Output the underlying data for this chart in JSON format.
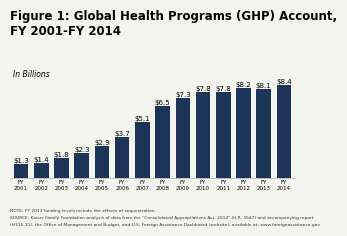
{
  "title": "Figure 1: Global Health Programs (GHP) Account,\nFY 2001-FY 2014",
  "subtitle": "In Billions",
  "categories": [
    "FY 2001",
    "FY 2002",
    "FY 2003",
    "FY 2004",
    "FY 2005",
    "FY 2006",
    "FY 2007",
    "FY 2008",
    "FY 2009",
    "FY 2010",
    "FY 2011",
    "FY 2012",
    "FY 2013",
    "FY 2014"
  ],
  "xtick_labels": [
    "FY 2001",
    "FY 2002",
    "FY 2003",
    "FY 2004",
    "FY 2005",
    "FY 2006",
    "FY 2007",
    "FY 2008",
    "FY 2009",
    "FY 2010",
    "FY 2011",
    "FY 2012",
    "FY 2013",
    "FY 2014"
  ],
  "values": [
    1.3,
    1.4,
    1.8,
    2.3,
    2.9,
    3.7,
    5.1,
    6.5,
    7.3,
    7.8,
    7.8,
    8.2,
    8.1,
    8.4
  ],
  "bar_color": "#1c3457",
  "bar_labels": [
    "$1.3",
    "$1.4",
    "$1.8",
    "$2.3",
    "$2.9",
    "$3.7",
    "$5.1",
    "$6.5",
    "$7.3",
    "$7.8",
    "$7.8",
    "$8.2",
    "$8.1",
    "$8.4"
  ],
  "note_line1": "NOTE: FY 2013 funding levels include the effects of sequestration.",
  "note_line2": "SOURCE: Kaiser Family Foundation analysis of data from the \"Consolidated Appropriations Act, 2014\" (H.R. 3547) and accompanying report",
  "note_line3": "(H115-31), the Office of Management and Budget, and U.S. Foreign Assistance Dashboard (website), available at: www.foreignassistance.gov",
  "background_color": "#f5f5f0",
  "title_fontsize": 8.5,
  "label_fontsize": 5.0,
  "tick_fontsize": 4.0,
  "subtitle_fontsize": 5.5,
  "note_fontsize": 3.2,
  "ylim": [
    0,
    10.2
  ]
}
